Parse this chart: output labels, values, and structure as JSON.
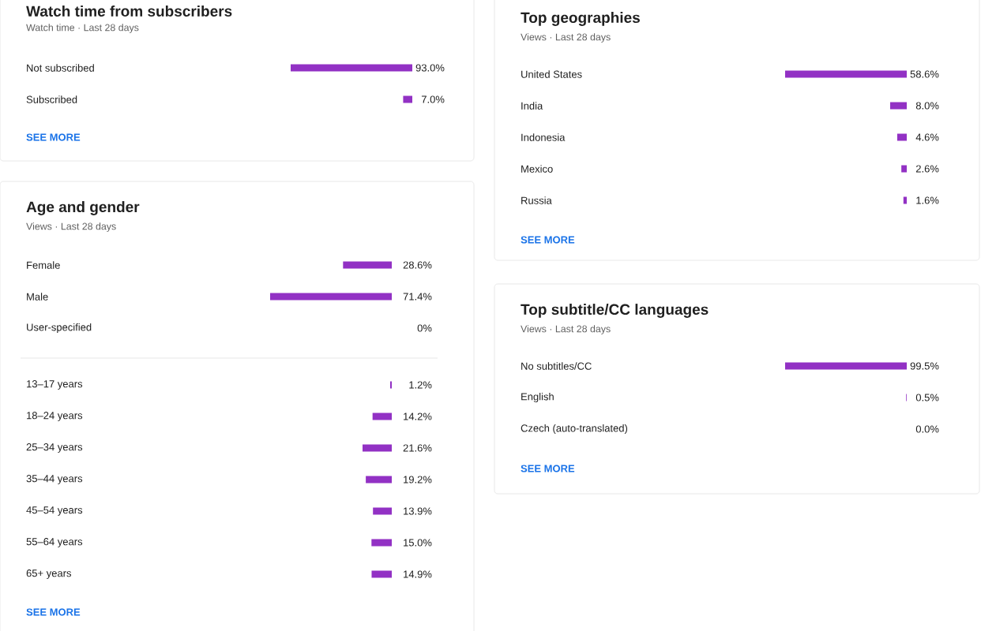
{
  "chart_data": [
    {
      "type": "bar",
      "orientation": "horizontal",
      "title": "Watch time from subscribers",
      "subtitle": "Watch time · Last 28 days",
      "categories": [
        "Not subscribed",
        "Subscribed"
      ],
      "values": [
        93.0,
        7.0
      ],
      "value_labels": [
        "93.0%",
        "7.0%"
      ],
      "color": "#9231c4",
      "annotations": [
        "SEE MORE"
      ]
    },
    {
      "type": "bar",
      "orientation": "horizontal",
      "title": "Age and gender",
      "subtitle": "Views · Last 28 days",
      "categories": [
        "Female",
        "Male",
        "User-specified"
      ],
      "values": [
        28.6,
        71.4,
        0
      ],
      "value_labels": [
        "28.6%",
        "71.4%",
        "0%"
      ],
      "color": "#9231c4"
    },
    {
      "type": "bar",
      "orientation": "horizontal",
      "categories": [
        "13–17 years",
        "18–24 years",
        "25–34 years",
        "35–44 years",
        "45–54 years",
        "55–64 years",
        "65+ years"
      ],
      "values": [
        1.2,
        14.2,
        21.6,
        19.2,
        13.9,
        15.0,
        14.9
      ],
      "value_labels": [
        "1.2%",
        "14.2%",
        "21.6%",
        "19.2%",
        "13.9%",
        "15.0%",
        "14.9%"
      ],
      "color": "#9231c4",
      "annotations": [
        "SEE MORE"
      ]
    },
    {
      "type": "bar",
      "orientation": "horizontal",
      "title": "Top geographies",
      "subtitle": "Views · Last 28 days",
      "categories": [
        "United States",
        "India",
        "Indonesia",
        "Mexico",
        "Russia"
      ],
      "values": [
        58.6,
        8.0,
        4.6,
        2.6,
        1.6
      ],
      "value_labels": [
        "58.6%",
        "8.0%",
        "4.6%",
        "2.6%",
        "1.6%"
      ],
      "color": "#9231c4",
      "annotations": [
        "SEE MORE"
      ]
    },
    {
      "type": "bar",
      "orientation": "horizontal",
      "title": "Top subtitle/CC languages",
      "subtitle": "Views · Last 28 days",
      "categories": [
        "No subtitles/CC",
        "English",
        "Czech (auto-translated)"
      ],
      "values": [
        99.5,
        0.5,
        0.0
      ],
      "value_labels": [
        "99.5%",
        "0.5%",
        "0.0%"
      ],
      "color": "#9231c4",
      "annotations": [
        "SEE MORE"
      ]
    }
  ]
}
